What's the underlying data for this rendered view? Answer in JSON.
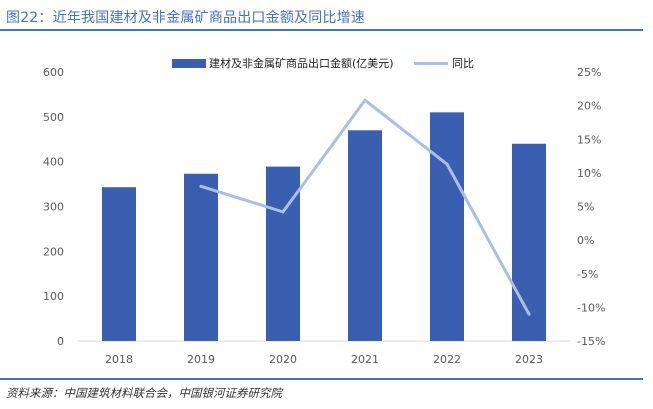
{
  "header": {
    "title": "图22：近年我国建材及非金属矿商品出口金额及同比增速"
  },
  "footer": {
    "source": "资料来源：中国建筑材料联合会，中国银河证券研究院"
  },
  "colors": {
    "accent": "#4472c4",
    "bar": "#3a5fb0",
    "line": "#a9c0e4",
    "axis": "#d9d9d9"
  },
  "chart_data": {
    "type": "bar",
    "categories": [
      "2018",
      "2019",
      "2020",
      "2021",
      "2022",
      "2023"
    ],
    "series": [
      {
        "name": "建材及非金属矿商品出口金额(亿美元)",
        "type": "bar",
        "axis": "left",
        "values": [
          343,
          373,
          389,
          470,
          510,
          440
        ]
      },
      {
        "name": "同比",
        "type": "line",
        "axis": "right",
        "values": [
          null,
          8.0,
          4.2,
          20.8,
          11.3,
          -11.0
        ]
      }
    ],
    "left_axis": {
      "min": 0,
      "max": 600,
      "step": 100,
      "ticks": [
        "0",
        "100",
        "200",
        "300",
        "400",
        "500",
        "600"
      ]
    },
    "right_axis": {
      "min": -15,
      "max": 25,
      "step": 5,
      "ticks": [
        "-15%",
        "-10%",
        "-5%",
        "0%",
        "5%",
        "10%",
        "15%",
        "20%",
        "25%"
      ]
    },
    "title": "",
    "xlabel": "",
    "ylabel": "",
    "legend": "top-center",
    "grid": false
  }
}
